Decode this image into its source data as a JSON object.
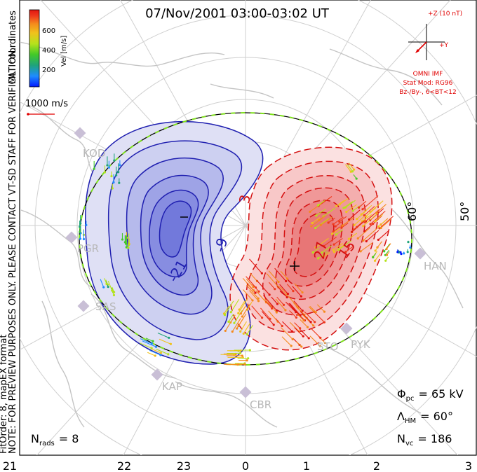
{
  "title": "07/Nov/2001 03:00-03:02 UT",
  "side_notes": {
    "coords": "MLT coordinates",
    "preview": "NOTE: FOR PREVIEW PURPOSES ONLY. PLEASE CONTACT VT-SD STAFF FOR VERIFICATION.",
    "fit": "FitOrder: 8, mapEX format"
  },
  "colorbar": {
    "label": "Vel [m/s]",
    "ticks": [
      "600",
      "400",
      "200"
    ],
    "colors": [
      "#0019ff",
      "#1e8cff",
      "#1fa37a",
      "#43c928",
      "#b6e21c",
      "#f0c21c",
      "#f58a1c",
      "#ef3a1c",
      "#e0140f"
    ]
  },
  "scale_vector": {
    "label": "1000 m/s"
  },
  "imf": {
    "z_label": "+Z (10 nT)",
    "y_label": "+Y",
    "source": "OMNI IMF",
    "stat_mod": "Stat Mod: RG96",
    "condition": "Bz-/By-, 6<BT<12",
    "color": "#e00000"
  },
  "latitude_labels": {
    "sixty": "60°",
    "fifty": "50°"
  },
  "contour_labels": [
    "-21",
    "-9",
    "3",
    "27",
    "15"
  ],
  "stations": [
    "KOD",
    "PGR",
    "SAS",
    "KAP",
    "CBR",
    "STO",
    "PYK",
    "HAN"
  ],
  "stats": {
    "phi_symbol": "Φ",
    "phi_sub": "pc",
    "phi_value": "= 65 kV",
    "lambda_symbol": "Λ",
    "lambda_sub": "HM",
    "lambda_value": "= 60°",
    "nvc_symbol": "N",
    "nvc_sub": "vc",
    "nvc_value": "= 186",
    "nrads_symbol": "N",
    "nrads_sub": "rads",
    "nrads_value": "= 8"
  },
  "mlt_axis": [
    "21",
    "22",
    "23",
    "0",
    "1",
    "2",
    "3"
  ],
  "colors": {
    "negative_potential": "#2222bb",
    "positive_potential": "#dd1111",
    "land": "#c8c8c8"
  }
}
